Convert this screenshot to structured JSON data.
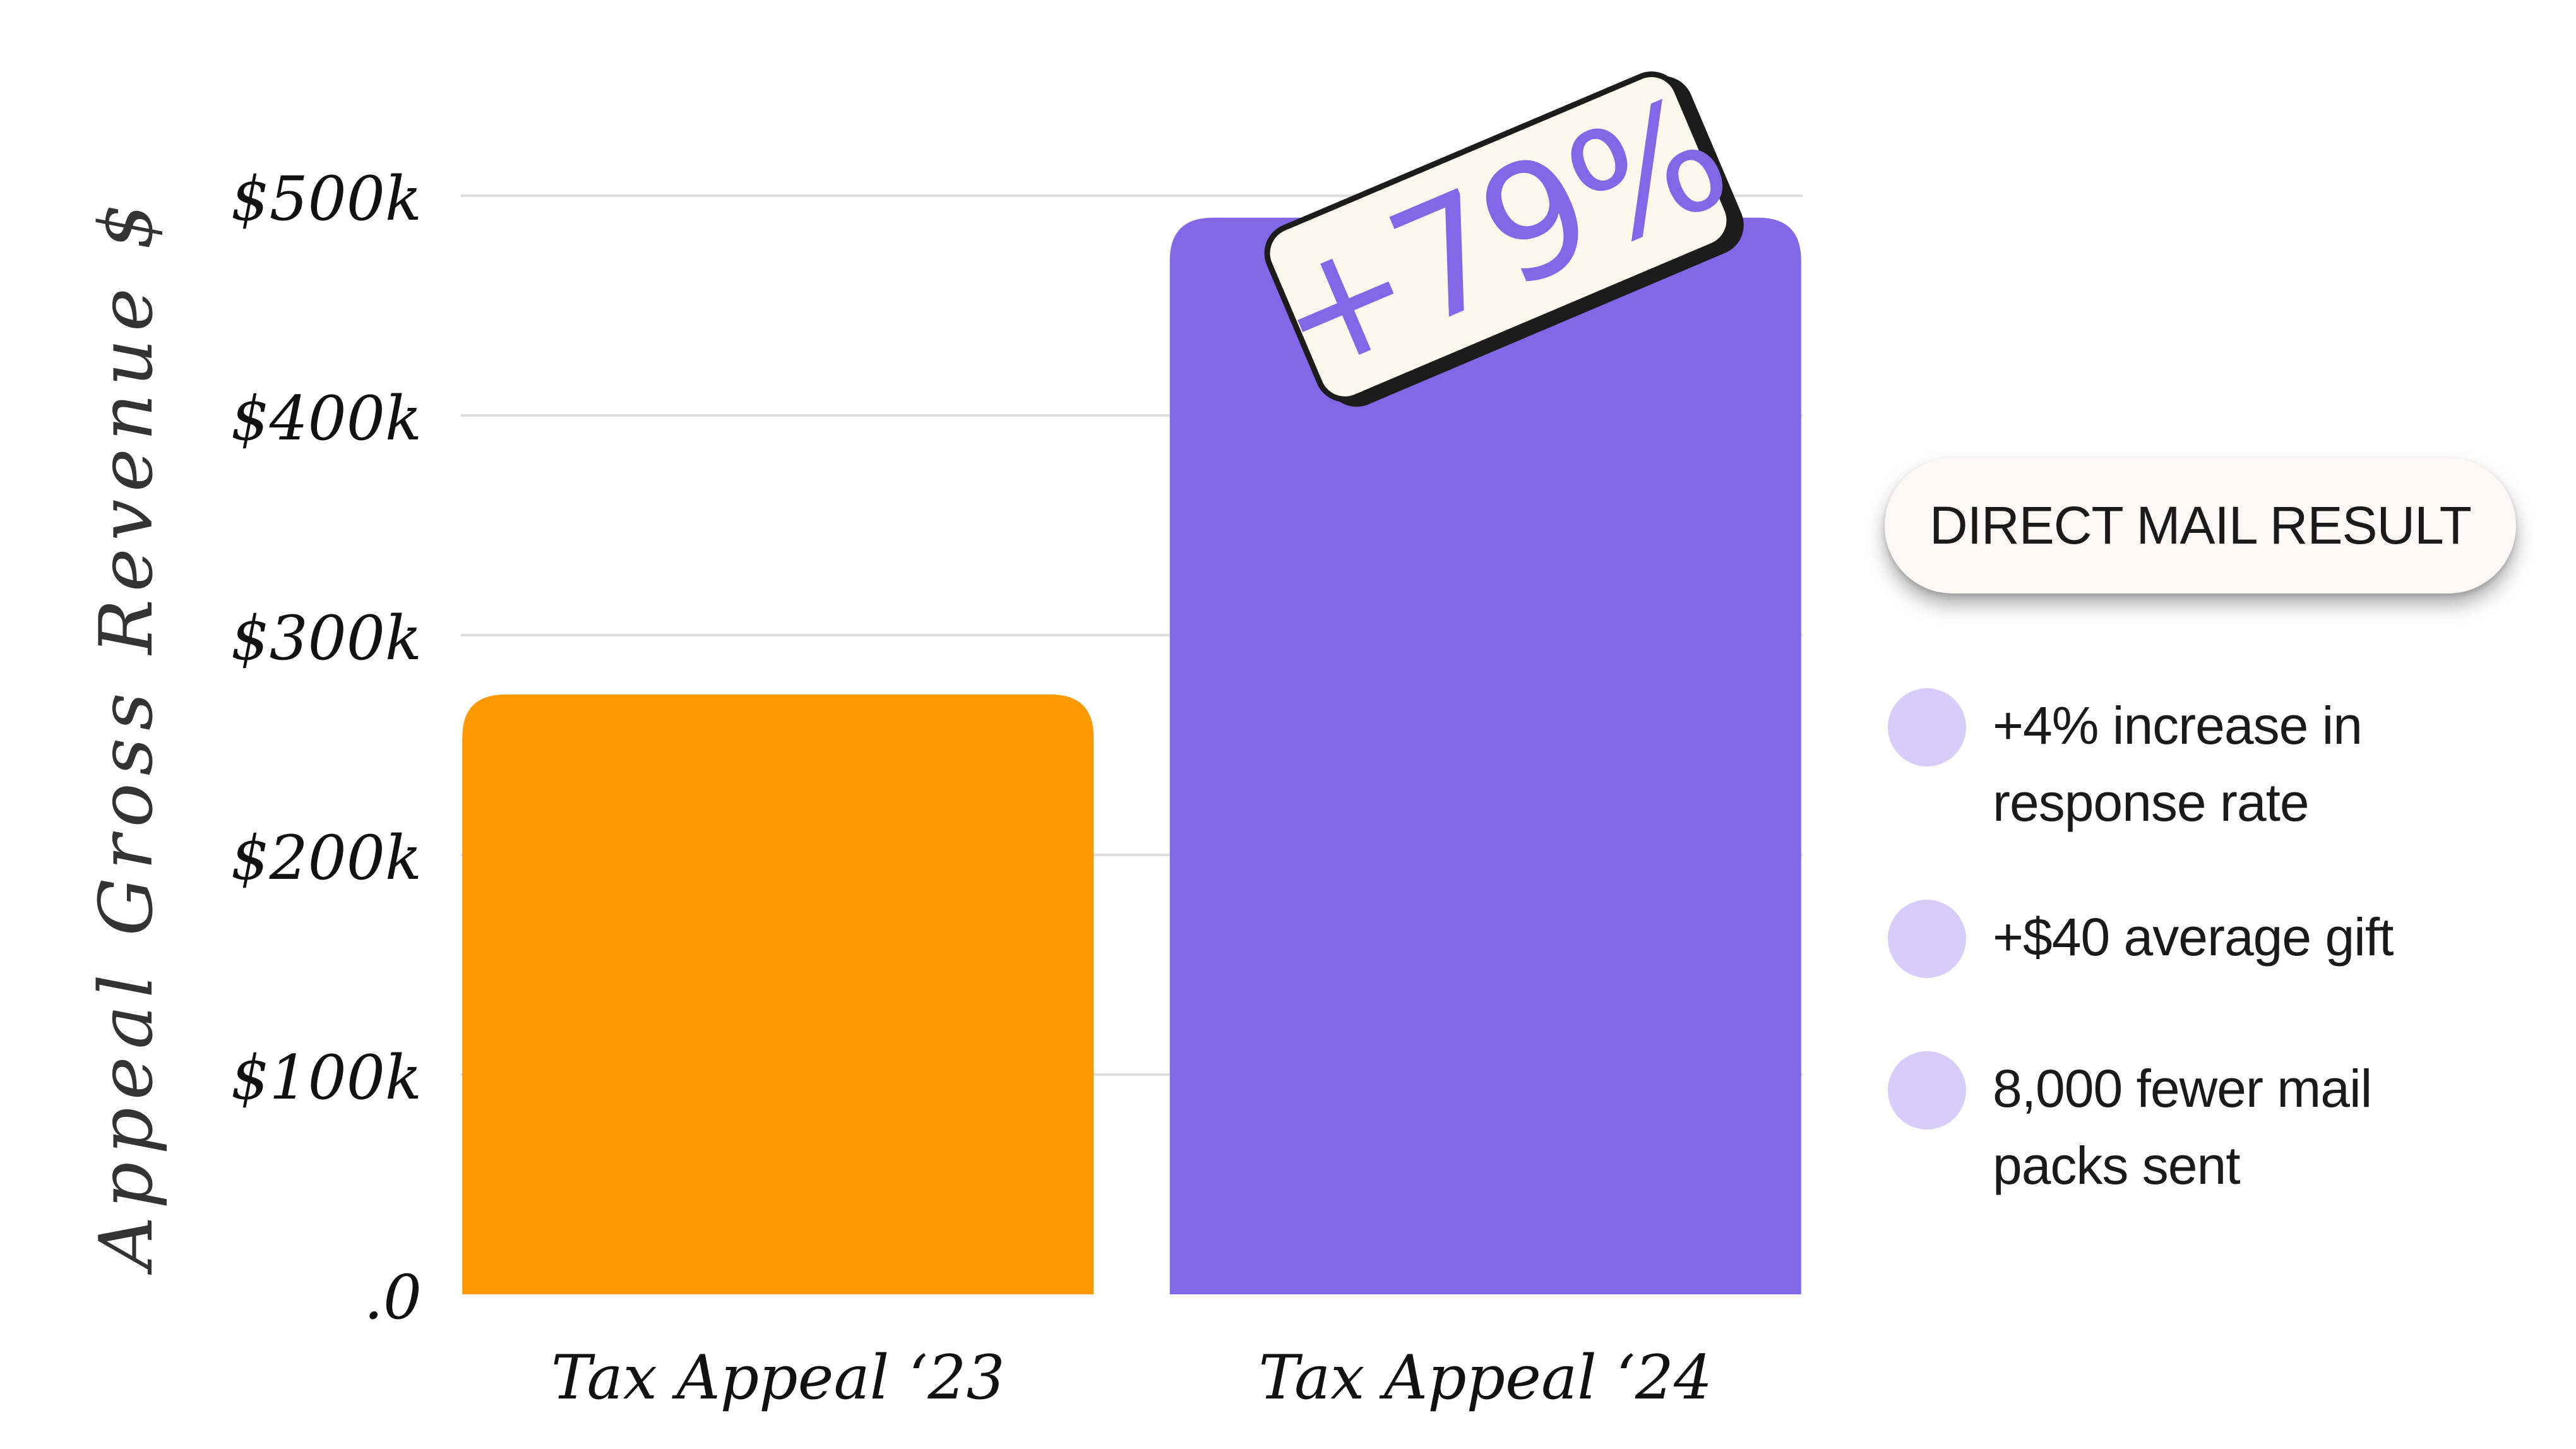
{
  "chart_data": {
    "type": "bar",
    "ylabel": "Appeal Gross Revenue $",
    "categories": [
      "Tax Appeal ‘23",
      "Tax Appeal ‘24"
    ],
    "values": [
      273000,
      490000
    ],
    "colors": [
      "#fc9900",
      "#8467e6"
    ],
    "ylim": [
      0,
      500000
    ],
    "yticks": [
      0,
      100000,
      200000,
      300000,
      400000,
      500000
    ],
    "ytick_labels": [
      ".0",
      "$100k",
      "$200k",
      "$300k",
      "$400k",
      "$500k"
    ],
    "grid": true,
    "annotation": "+79%"
  },
  "panel": {
    "title": "DIRECT MAIL  RESULT",
    "items": [
      {
        "text": "+4% increase in\nresponse rate"
      },
      {
        "text": "+$40 average gift"
      },
      {
        "text": "8,000 fewer mail\npacks sent"
      }
    ]
  }
}
